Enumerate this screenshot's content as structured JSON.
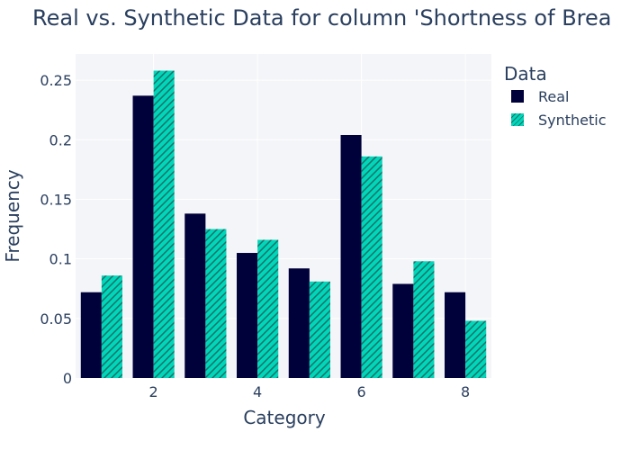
{
  "chart_data": {
    "type": "bar",
    "title": "Real vs. Synthetic Data for column 'Shortness of Brea",
    "xlabel": "Category",
    "ylabel": "Frequency",
    "legend_title": "Data",
    "x": [
      1,
      2,
      3,
      4,
      5,
      6,
      7,
      8
    ],
    "xticks": [
      2,
      4,
      6,
      8
    ],
    "yticks": [
      0,
      0.05,
      0.1,
      0.15,
      0.2,
      0.25
    ],
    "ytick_labels": [
      "0",
      "0.05",
      "0.1",
      "0.15",
      "0.2",
      "0.25"
    ],
    "xlim": [
      0.5,
      8.5
    ],
    "ylim": [
      0,
      0.272
    ],
    "grid": true,
    "legend_position": "top-right",
    "series": [
      {
        "name": "Real",
        "values": [
          0.072,
          0.237,
          0.138,
          0.105,
          0.092,
          0.204,
          0.079,
          0.072
        ],
        "color": "#00003a",
        "pattern": "solid"
      },
      {
        "name": "Synthetic",
        "values": [
          0.086,
          0.258,
          0.125,
          0.116,
          0.081,
          0.186,
          0.098,
          0.048
        ],
        "color": "#00d6b9",
        "pattern": "hatch"
      }
    ]
  }
}
